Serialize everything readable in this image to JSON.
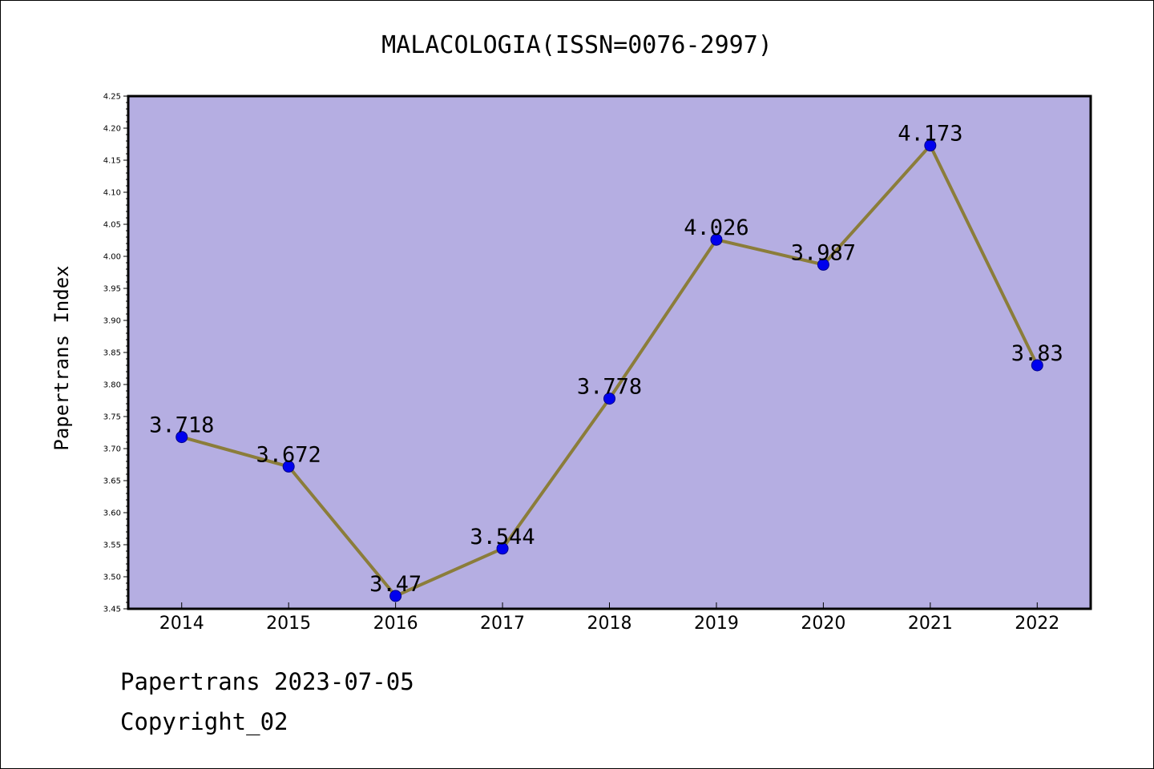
{
  "chart_data": {
    "type": "line",
    "title": "MALACOLOGIA(ISSN=0076-2997)",
    "xlabel": "",
    "ylabel": "Papertrans Index",
    "categories": [
      "2014",
      "2015",
      "2016",
      "2017",
      "2018",
      "2019",
      "2020",
      "2021",
      "2022"
    ],
    "values": [
      3.718,
      3.672,
      3.47,
      3.544,
      3.778,
      4.026,
      3.987,
      4.173,
      3.83
    ],
    "data_labels": [
      "3.718",
      "3.672",
      "3.47",
      "3.544",
      "3.778",
      "4.026",
      "3.987",
      "4.173",
      "3.83"
    ],
    "ylim": [
      3.45,
      4.25
    ],
    "yticks": [
      "3.45",
      "3.50",
      "3.55",
      "3.60",
      "3.65",
      "3.70",
      "3.75",
      "3.80",
      "3.85",
      "3.90",
      "3.95",
      "4.00",
      "4.05",
      "4.10",
      "4.15",
      "4.20",
      "4.25"
    ],
    "grid": false,
    "legend": "none",
    "colors": {
      "plot_background": "#b5aee2",
      "line": "#8b7d3a",
      "marker": "#0000ee"
    }
  },
  "footer": {
    "date_line": "Papertrans 2023-07-05",
    "copyright_line": "Copyright_02"
  }
}
